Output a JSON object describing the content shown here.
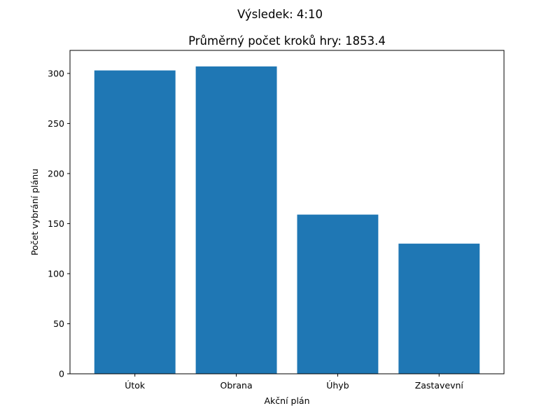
{
  "figure": {
    "suptitle": "Výsledek: 4:10"
  },
  "chart_data": {
    "type": "bar",
    "title": "Průměrný počet kroků hry: 1853.4",
    "xlabel": "Akční plán",
    "ylabel": "Počet vybrání plánu",
    "categories": [
      "Útok",
      "Obrana",
      "Úhyb",
      "Zastavevní"
    ],
    "values": [
      303,
      307,
      159,
      130
    ],
    "ylim": [
      0,
      323
    ],
    "yticks": [
      0,
      50,
      100,
      150,
      200,
      250,
      300
    ],
    "grid": false,
    "legend": "none",
    "bar_color": "#1f77b4"
  }
}
